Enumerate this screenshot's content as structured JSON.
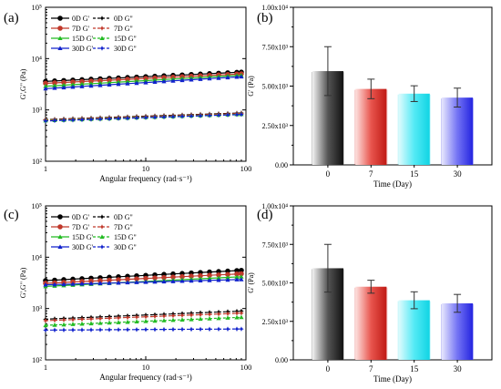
{
  "chart_data": [
    {
      "panel": "a",
      "type": "line",
      "xscale": "log",
      "yscale": "log",
      "xlim": [
        1,
        100
      ],
      "ylim": [
        100,
        100000
      ],
      "xlabel": "Angular frequency (rad·s⁻¹)",
      "ylabel": "G',G\" (Pa)",
      "x_ticks": [
        "1",
        "10",
        "100"
      ],
      "y_ticks": [
        "10²",
        "10³",
        "10⁴",
        "10⁵"
      ],
      "legend": [
        "0D G'",
        "0D G\"",
        "7D G'",
        "7D G\"",
        "15D G'",
        "15D G\"",
        "30D G'",
        "30D G\""
      ],
      "legend_position": "top-left",
      "series": [
        {
          "name": "0D G'",
          "color": "#000000",
          "marker": "circle",
          "dash": false,
          "start": 3600,
          "end": 5500
        },
        {
          "name": "0D G\"",
          "color": "#000000",
          "marker": "star",
          "dash": true,
          "start": 650,
          "end": 880
        },
        {
          "name": "7D G'",
          "color": "#c0392b",
          "marker": "circle",
          "dash": false,
          "start": 3300,
          "end": 5100
        },
        {
          "name": "7D G\"",
          "color": "#c0392b",
          "marker": "star",
          "dash": true,
          "start": 640,
          "end": 860
        },
        {
          "name": "15D G'",
          "color": "#22bb22",
          "marker": "tri",
          "dash": false,
          "start": 2900,
          "end": 4800
        },
        {
          "name": "15D G\"",
          "color": "#22bb22",
          "marker": "tri",
          "dash": true,
          "start": 620,
          "end": 830
        },
        {
          "name": "30D G'",
          "color": "#1122cc",
          "marker": "tri",
          "dash": false,
          "start": 2600,
          "end": 4500
        },
        {
          "name": "30D G\"",
          "color": "#1122cc",
          "marker": "star",
          "dash": true,
          "start": 610,
          "end": 820
        }
      ]
    },
    {
      "panel": "b",
      "type": "bar",
      "categories": [
        "0",
        "7",
        "15",
        "30"
      ],
      "values": [
        5950,
        4820,
        4520,
        4270
      ],
      "errors": [
        1550,
        620,
        500,
        600
      ],
      "ylim": [
        0,
        10000
      ],
      "y_ticks": [
        "0.00",
        "2.50x10³",
        "5.00x10³",
        "7.50x10³",
        "1.00x10⁴"
      ],
      "xlabel": "Time (Day)",
      "ylabel": "G' (Pa)",
      "colors": [
        "#6b6b6b",
        "#e0504a",
        "#5de8f2",
        "#6a6af2"
      ]
    },
    {
      "panel": "c",
      "type": "line",
      "xscale": "log",
      "yscale": "log",
      "xlim": [
        1,
        100
      ],
      "ylim": [
        100,
        100000
      ],
      "xlabel": "Angular frequency (rad·s⁻¹)",
      "ylabel": "G',G\" (Pa)",
      "x_ticks": [
        "1",
        "10",
        "100"
      ],
      "y_ticks": [
        "10²",
        "10³",
        "10⁴",
        "10⁵"
      ],
      "legend": [
        "0D G'",
        "0D G\"",
        "7D G'",
        "7D G\"",
        "15D G'",
        "15D G\"",
        "30D G'",
        "30D G\""
      ],
      "legend_position": "top-left",
      "series": [
        {
          "name": "0D G'",
          "color": "#000000",
          "marker": "circle",
          "dash": false,
          "start": 3500,
          "end": 5600
        },
        {
          "name": "0D G\"",
          "color": "#000000",
          "marker": "star",
          "dash": true,
          "start": 620,
          "end": 900
        },
        {
          "name": "7D G'",
          "color": "#c0392b",
          "marker": "circle",
          "dash": false,
          "start": 3100,
          "end": 4800
        },
        {
          "name": "7D G\"",
          "color": "#c0392b",
          "marker": "star",
          "dash": true,
          "start": 580,
          "end": 820
        },
        {
          "name": "15D G'",
          "color": "#22bb22",
          "marker": "tri",
          "dash": false,
          "start": 2700,
          "end": 4200
        },
        {
          "name": "15D G\"",
          "color": "#22bb22",
          "marker": "tri",
          "dash": true,
          "start": 470,
          "end": 680
        },
        {
          "name": "30D G'",
          "color": "#1122cc",
          "marker": "tri",
          "dash": false,
          "start": 2900,
          "end": 3700
        },
        {
          "name": "30D G\"",
          "color": "#1122cc",
          "marker": "star",
          "dash": true,
          "start": 380,
          "end": 400
        }
      ]
    },
    {
      "panel": "d",
      "type": "bar",
      "categories": [
        "0",
        "7",
        "15",
        "30"
      ],
      "values": [
        5950,
        4750,
        3870,
        3670
      ],
      "errors": [
        1550,
        420,
        550,
        580
      ],
      "ylim": [
        0,
        10000
      ],
      "y_ticks": [
        "0.00",
        "2.50x10³",
        "5.00x10³",
        "7.50x10³",
        "1.00x10⁴"
      ],
      "xlabel": "Time (Day)",
      "ylabel": "G' (Pa)",
      "colors": [
        "#6b6b6b",
        "#e0504a",
        "#5de8f2",
        "#6a6af2"
      ]
    }
  ]
}
